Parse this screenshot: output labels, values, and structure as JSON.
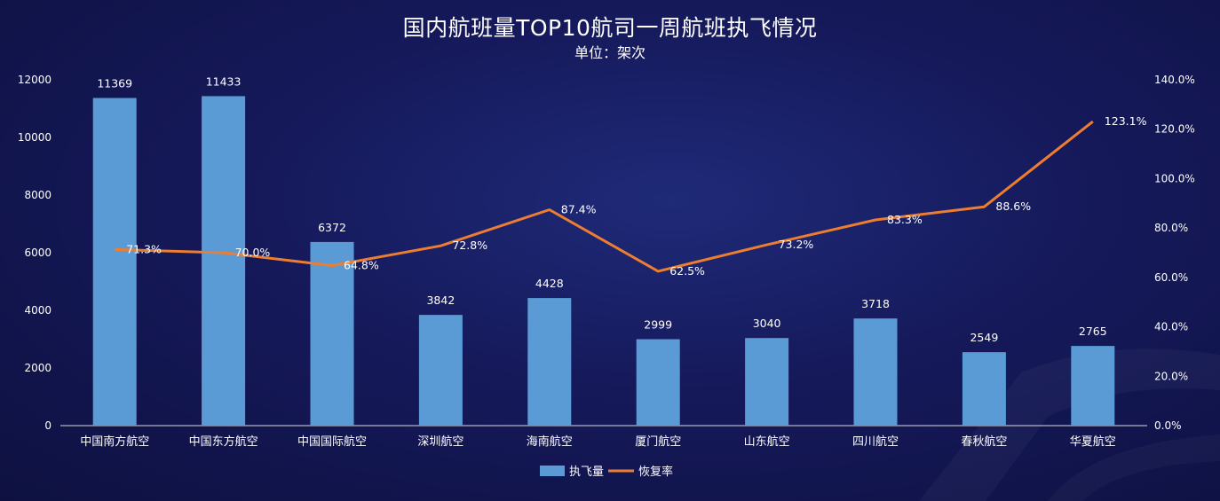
{
  "chart_data": {
    "type": "bar",
    "title": "国内航班量TOP10航司一周航班执飞情况",
    "subtitle": "单位：架次",
    "categories": [
      "中国南方航空",
      "中国东方航空",
      "中国国际航空",
      "深圳航空",
      "海南航空",
      "厦门航空",
      "山东航空",
      "四川航空",
      "春秋航空",
      "华夏航空"
    ],
    "series": [
      {
        "name": "执飞量",
        "type": "bar",
        "axis": "left",
        "color": "#5b9bd5",
        "values": [
          11369,
          11433,
          6372,
          3842,
          4428,
          2999,
          3040,
          3718,
          2549,
          2765
        ],
        "labels": [
          "11369",
          "11433",
          "6372",
          "3842",
          "4428",
          "2999",
          "3040",
          "3718",
          "2549",
          "2765"
        ]
      },
      {
        "name": "恢复率",
        "type": "line",
        "axis": "right",
        "color": "#ed7d31",
        "values": [
          71.3,
          70.0,
          64.8,
          72.8,
          87.4,
          62.5,
          73.2,
          83.3,
          88.6,
          123.1
        ],
        "labels": [
          "71.3%",
          "70.0%",
          "64.8%",
          "72.8%",
          "87.4%",
          "62.5%",
          "73.2%",
          "83.3%",
          "88.6%",
          "123.1%"
        ]
      }
    ],
    "y_left": {
      "min": 0,
      "max": 12000,
      "ticks": [
        "0",
        "2000",
        "4000",
        "6000",
        "8000",
        "10000",
        "12000"
      ]
    },
    "y_right": {
      "min": 0,
      "max": 140,
      "ticks": [
        "0.0%",
        "20.0%",
        "40.0%",
        "60.0%",
        "80.0%",
        "100.0%",
        "120.0%",
        "140.0%"
      ]
    },
    "grid": false,
    "legend": "bottom-center"
  }
}
